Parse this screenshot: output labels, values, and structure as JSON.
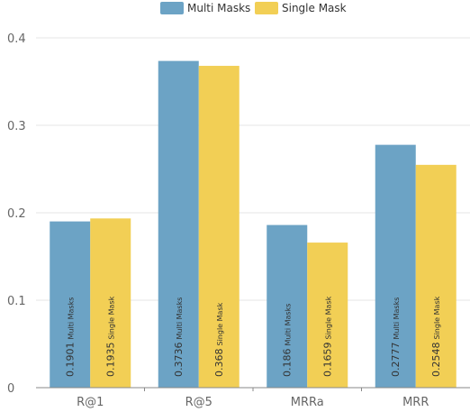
{
  "chart_data": {
    "type": "bar",
    "categories": [
      "R@1",
      "R@5",
      "MRRa",
      "MRR"
    ],
    "series": [
      {
        "name": "Multi Masks",
        "color": "#6ca3c5",
        "values": [
          0.1901,
          0.3736,
          0.186,
          0.2777
        ],
        "value_labels": [
          "0.1901",
          "0.3736",
          "0.186",
          "0.2777"
        ]
      },
      {
        "name": "Single Mask",
        "color": "#f2cf55",
        "values": [
          0.1935,
          0.368,
          0.1659,
          0.2548
        ],
        "value_labels": [
          "0.1935",
          "0.368",
          "0.1659",
          "0.2548"
        ]
      }
    ],
    "ylim": [
      0,
      0.4
    ],
    "yticks": [
      "0",
      "0.1",
      "0.2",
      "0.3",
      "0.4"
    ],
    "grid": true,
    "legend_position": "top-center"
  }
}
